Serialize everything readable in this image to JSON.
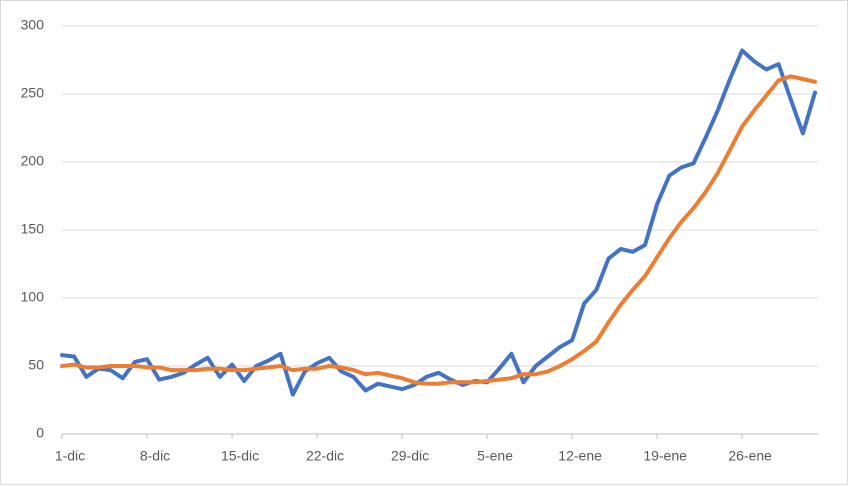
{
  "chart_data": {
    "type": "line",
    "categories": [
      "1-dic",
      null,
      null,
      null,
      null,
      null,
      null,
      "8-dic",
      null,
      null,
      null,
      null,
      null,
      null,
      "15-dic",
      null,
      null,
      null,
      null,
      null,
      null,
      "22-dic",
      null,
      null,
      null,
      null,
      null,
      null,
      "29-dic",
      null,
      null,
      null,
      null,
      null,
      null,
      "5-ene",
      null,
      null,
      null,
      null,
      null,
      null,
      "12-ene",
      null,
      null,
      null,
      null,
      null,
      null,
      "19-ene",
      null,
      null,
      null,
      null,
      null,
      null,
      "26-ene",
      null,
      null,
      null,
      null,
      null,
      null
    ],
    "series": [
      {
        "color": "#4472c4",
        "values": [
          58,
          57,
          42,
          48,
          47,
          41,
          53,
          55,
          40,
          42,
          45,
          51,
          56,
          42,
          51,
          39,
          50,
          54,
          59,
          29,
          46,
          52,
          56,
          46,
          42,
          32,
          37,
          35,
          33,
          36,
          42,
          45,
          40,
          36,
          39,
          38,
          48,
          59,
          38,
          50,
          57,
          64,
          69,
          96,
          106,
          129,
          136,
          134,
          139,
          169,
          190,
          196,
          199,
          218,
          238,
          261,
          282,
          274,
          268,
          272,
          246,
          221,
          251
        ]
      },
      {
        "color": "#ed7d31",
        "values": [
          50,
          51,
          49,
          49,
          50,
          50,
          50,
          49,
          49,
          47,
          47,
          47,
          48,
          48,
          47,
          47,
          48,
          49,
          50,
          47,
          48,
          48,
          50,
          49,
          47,
          44,
          45,
          43,
          41,
          38,
          37,
          37,
          38,
          38,
          38,
          39,
          40,
          41,
          44,
          44,
          46,
          50,
          55,
          61,
          68,
          82,
          95,
          106,
          116,
          130,
          144,
          156,
          166,
          178,
          192,
          209,
          226,
          238,
          249,
          260,
          263,
          261,
          259
        ]
      }
    ],
    "ylim": [
      0,
      300
    ],
    "yticks": [
      0,
      50,
      100,
      150,
      200,
      250,
      300
    ],
    "grid": true
  }
}
